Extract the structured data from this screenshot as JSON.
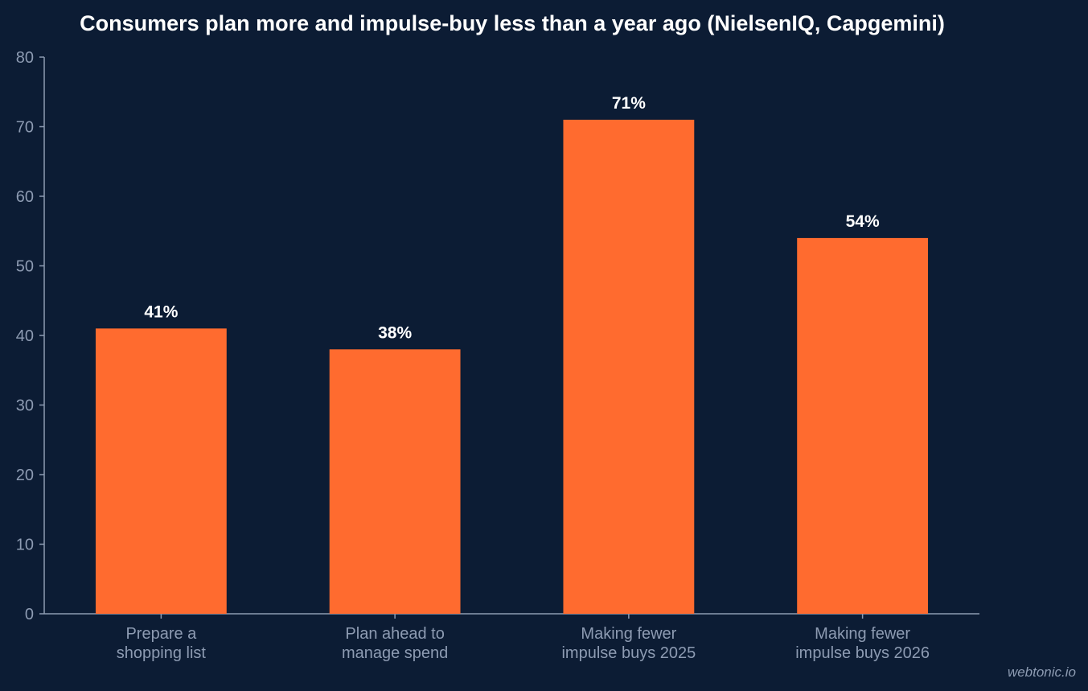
{
  "chart_data": {
    "type": "bar",
    "title": "Consumers plan more and impulse-buy less than a year ago (NielsenIQ, Capgemini)",
    "categories": [
      [
        "Prepare a",
        "shopping list"
      ],
      [
        "Plan ahead to",
        "manage spend"
      ],
      [
        "Making fewer",
        "impulse buys 2025"
      ],
      [
        "Making fewer",
        "impulse buys 2026"
      ]
    ],
    "values": [
      41,
      38,
      71,
      54
    ],
    "data_labels": [
      "41%",
      "38%",
      "71%",
      "54%"
    ],
    "xlabel": "",
    "ylabel": "",
    "ylim": [
      0,
      80
    ],
    "yticks": [
      0,
      10,
      20,
      30,
      40,
      50,
      60,
      70,
      80
    ],
    "grid": false,
    "legend": "none",
    "bar_color": "#ff6b2f"
  },
  "colors": {
    "background": "#0c1c34",
    "axis": "#8d9bb2",
    "text": "#ffffff"
  },
  "watermark": "webtonic.io"
}
